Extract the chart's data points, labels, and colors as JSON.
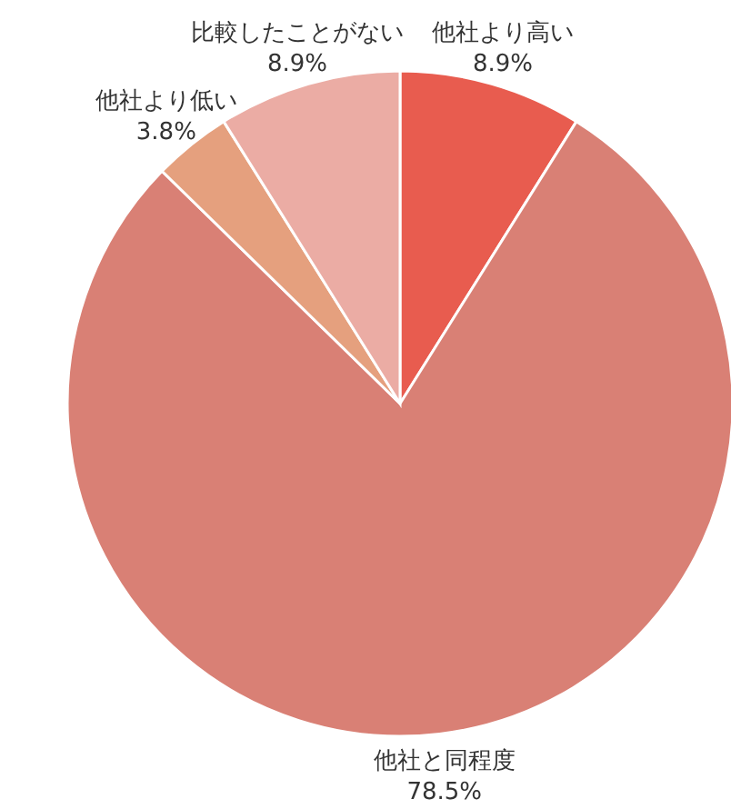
{
  "chart_data": {
    "type": "pie",
    "categories": [
      "他社より高い",
      "他社と同程度",
      "他社より低い",
      "比較したことがない"
    ],
    "values": [
      8.9,
      78.5,
      3.8,
      8.9
    ],
    "colors": [
      "#e85c4f",
      "#d98075",
      "#e5a07e",
      "#ebaca4"
    ],
    "value_labels": [
      "8.9%",
      "78.5%",
      "3.8%",
      "8.9%"
    ]
  }
}
